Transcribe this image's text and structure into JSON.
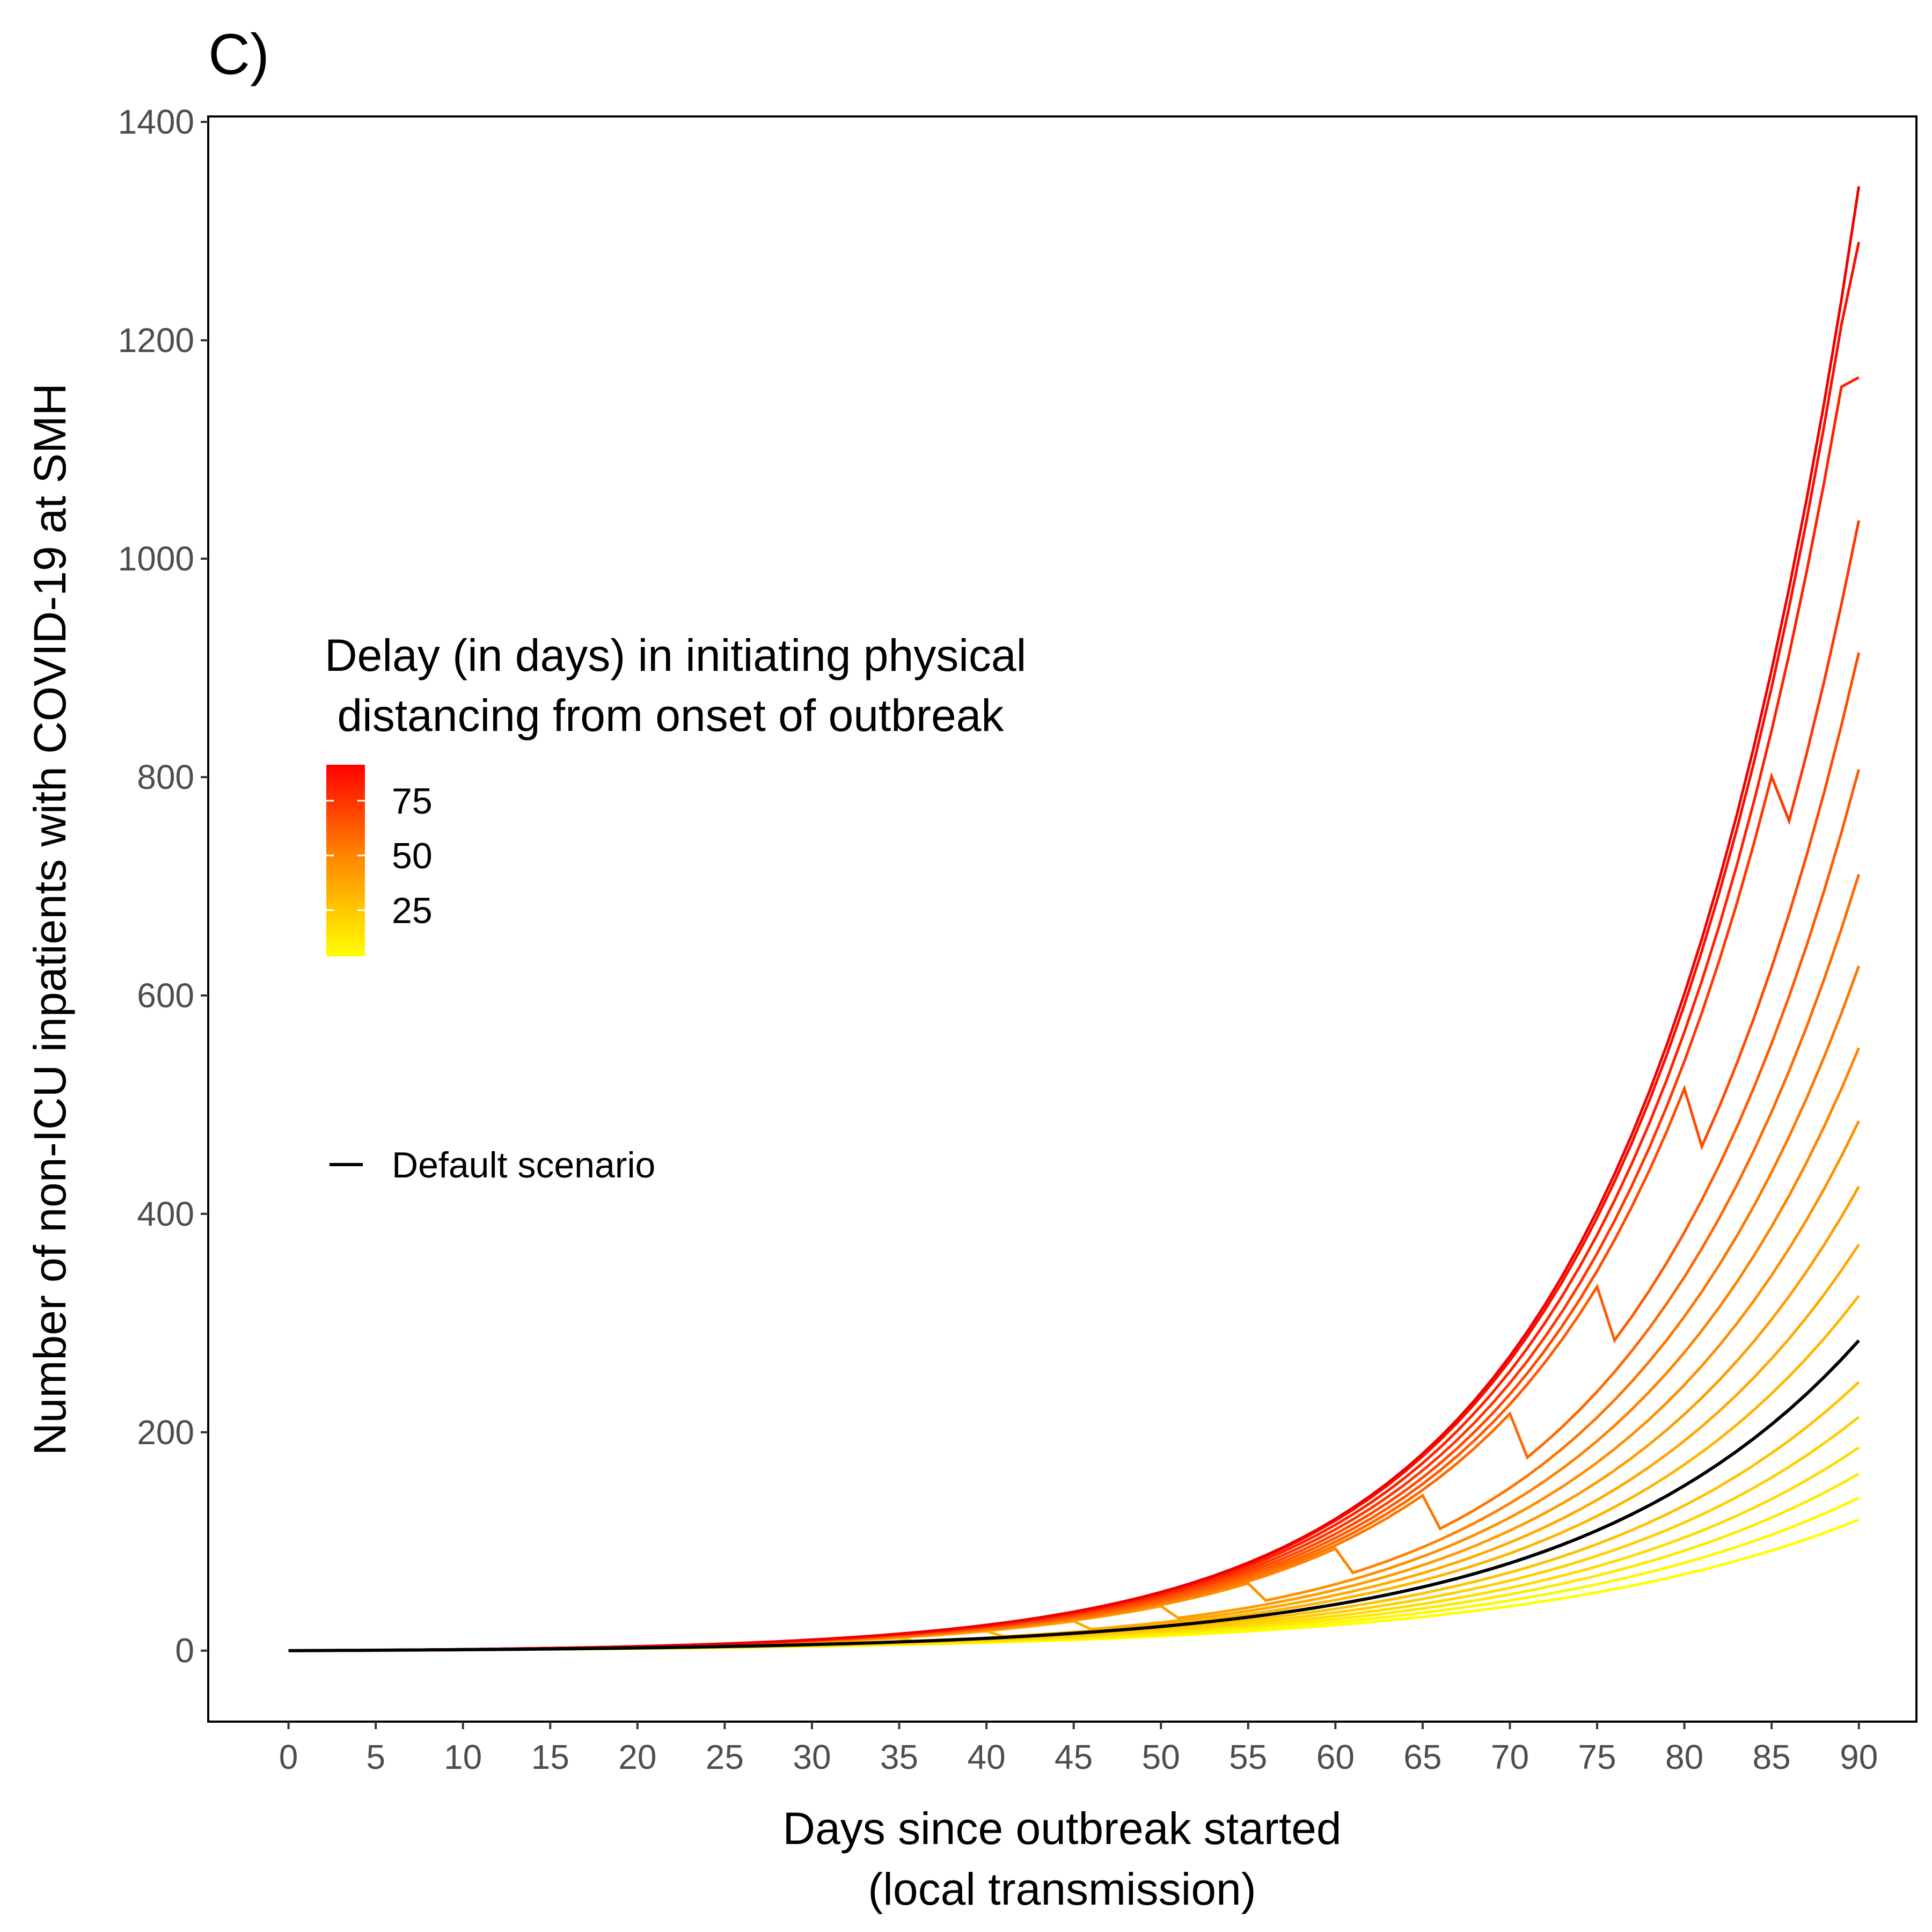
{
  "panel_label": "C)",
  "chart_data": {
    "type": "line",
    "xlabel": [
      "Days since outbreak started",
      "(local transmission)"
    ],
    "ylabel": "Number of non-ICU inpatients with COVID-19 at SMH",
    "xlim": [
      -4.6,
      93.3
    ],
    "ylim": [
      -65,
      1405
    ],
    "x_ticks": [
      0,
      5,
      10,
      15,
      20,
      25,
      30,
      35,
      40,
      45,
      50,
      55,
      60,
      65,
      70,
      75,
      80,
      85,
      90
    ],
    "y_ticks": [
      0,
      200,
      400,
      600,
      800,
      1000,
      1200,
      1400
    ],
    "grid": false,
    "x_range": [
      0,
      90
    ],
    "series": [
      {
        "delay": 10,
        "color": "#ffff00",
        "end_value": 120
      },
      {
        "delay": 15,
        "color": "#fff700",
        "end_value": 140
      },
      {
        "delay": 20,
        "color": "#ffe900",
        "end_value": 162
      },
      {
        "delay": 25,
        "color": "#ffdb00",
        "end_value": 186
      },
      {
        "delay": 30,
        "color": "#ffcf00",
        "end_value": 214
      },
      {
        "delay": 35,
        "color": "#ffc200",
        "end_value": 246
      },
      {
        "delay": 40,
        "color": "#ffb500",
        "end_value": 325
      },
      {
        "delay": 45,
        "color": "#ffa800",
        "end_value": 372
      },
      {
        "delay": 50,
        "color": "#ff9c00",
        "end_value": 425
      },
      {
        "delay": 55,
        "color": "#ff8f00",
        "end_value": 485
      },
      {
        "delay": 60,
        "color": "#ff8200",
        "end_value": 552
      },
      {
        "delay": 65,
        "color": "#ff7500",
        "end_value": 627
      },
      {
        "delay": 70,
        "color": "#ff6800",
        "end_value": 711
      },
      {
        "delay": 75,
        "color": "#ff5a00",
        "end_value": 807
      },
      {
        "delay": 80,
        "color": "#ff4a00",
        "end_value": 914
      },
      {
        "delay": 85,
        "color": "#ff3700",
        "end_value": 1035
      },
      {
        "delay": 90,
        "color": "#ff2200",
        "end_value": 1166
      },
      {
        "delay": 95,
        "color": "#f91000",
        "end_value": 1290
      },
      {
        "delay": 100,
        "color": "#f00000",
        "end_value": 1341
      },
      {
        "name": "Default scenario",
        "color": "#000000",
        "end_value": 284
      }
    ],
    "legend": {
      "title": [
        "Delay (in days) in initiating physical",
        " distancing from onset of outbreak"
      ],
      "colorbar_labels": [
        "75",
        "50",
        "25"
      ],
      "colorbar_colors": [
        "#ff0000",
        "#ff8c00",
        "#ffff00"
      ],
      "line_entry": "Default scenario",
      "placement": "inside-left"
    }
  }
}
